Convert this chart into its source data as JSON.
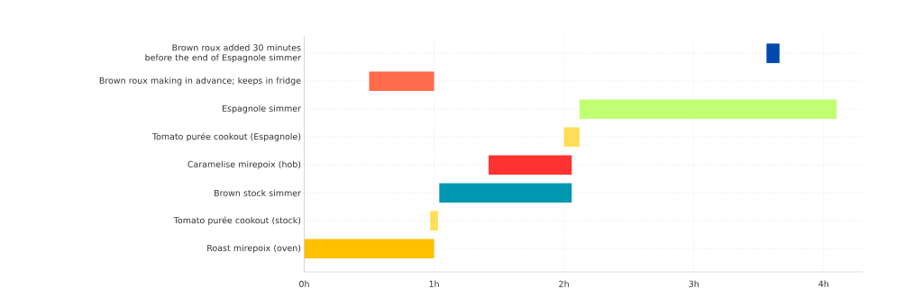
{
  "chart_data": {
    "type": "bar",
    "orientation": "horizontal",
    "categories": [
      "Brown roux added 30 minutes before the end of Espagnole simmer",
      "Brown roux making in advance; keeps in fridge",
      "Espagnole simmer",
      "Tomato purée cookout (Espagnole)",
      "Caramelise mirepoix (hob)",
      "Brown stock simmer",
      "Tomato purée cookout (stock)",
      "Roast mirepoix (oven)"
    ],
    "base": [
      3.56,
      0.5,
      2.12,
      2.0,
      1.42,
      1.04,
      0.97,
      0
    ],
    "values": [
      0.1,
      0.5,
      1.98,
      0.12,
      0.64,
      1.02,
      0.06,
      1.0
    ],
    "colors": [
      "#004aad",
      "#ff6b4a",
      "#c1ff72",
      "#ffde59",
      "#ff3131",
      "#0097b2",
      "#ffde59",
      "#ffc000"
    ],
    "xlim": [
      0,
      4.3
    ],
    "xticks": [
      {
        "value": 0,
        "label": "0h"
      },
      {
        "value": 1,
        "label": "1h"
      },
      {
        "value": 2,
        "label": "2h"
      },
      {
        "value": 3,
        "label": "3h"
      },
      {
        "value": 4,
        "label": "4h"
      }
    ],
    "grid": true
  }
}
